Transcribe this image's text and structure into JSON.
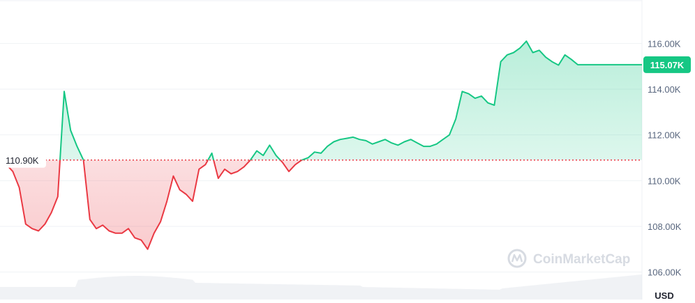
{
  "chart_data": {
    "type": "area",
    "title": "",
    "xlabel": "",
    "ylabel": "",
    "unit_label": "USD",
    "y_ticks": [
      "116.00K",
      "114.00K",
      "112.00K",
      "110.00K",
      "108.00K",
      "106.00K"
    ],
    "y_tick_values": [
      116000,
      114000,
      112000,
      110000,
      108000,
      106000
    ],
    "ylim": [
      104800,
      117900
    ],
    "baseline": {
      "value": 110900,
      "label": "110.90K"
    },
    "current_price": {
      "value": 115070,
      "label": "115.07K"
    },
    "watermark": "CoinMarketCap",
    "colors": {
      "up": "#16c784",
      "down": "#ea3943",
      "grid": "#eff2f5",
      "volume": "#e4e7ec",
      "baseline": "#ea3943"
    },
    "series": [
      {
        "x": [
          0,
          1,
          2,
          3,
          4,
          5,
          6,
          7,
          8,
          9,
          10,
          11,
          12,
          13,
          14,
          15,
          16,
          17,
          18,
          19,
          20,
          21,
          22,
          23,
          24,
          25,
          26,
          27,
          28,
          29,
          30,
          31,
          32,
          33,
          34,
          35,
          36,
          37,
          38,
          39,
          40,
          41,
          42,
          43,
          44,
          45,
          46,
          47,
          48,
          49,
          50,
          51,
          52,
          53,
          54,
          55,
          56,
          57,
          58,
          59,
          60,
          61,
          62,
          63,
          64,
          65,
          66,
          67,
          68,
          69,
          70,
          71,
          72,
          73,
          74,
          75,
          76,
          77,
          78,
          79,
          80,
          81,
          82,
          83,
          84,
          85,
          86,
          87,
          88,
          89,
          90,
          91,
          92,
          93,
          94,
          95,
          96,
          97,
          98,
          99,
          100
        ],
        "values": [
          110900,
          110700,
          110400,
          109700,
          108100,
          107900,
          107800,
          108100,
          108600,
          109300,
          113900,
          112200,
          111500,
          110900,
          108300,
          107900,
          108050,
          107800,
          107700,
          107700,
          107900,
          107500,
          107400,
          107000,
          107700,
          108200,
          109100,
          110200,
          109600,
          109400,
          109100,
          110500,
          110700,
          111200,
          110100,
          110500,
          110300,
          110400,
          110600,
          110900,
          111300,
          111100,
          111550,
          111100,
          110800,
          110400,
          110700,
          110900,
          111000,
          111250,
          111200,
          111500,
          111700,
          111800,
          111850,
          111900,
          111800,
          111750,
          111600,
          111700,
          111800,
          111650,
          111550,
          111700,
          111800,
          111650,
          111500,
          111500,
          111600,
          111800,
          112000,
          112700,
          113900,
          113800,
          113600,
          113700,
          113400,
          113300,
          115200,
          115500,
          115600,
          115800,
          116100,
          115600,
          115700,
          115400,
          115200,
          115050,
          115500,
          115300,
          115070,
          115070,
          115070,
          115070,
          115070,
          115070,
          115070,
          115070,
          115070,
          115070,
          115070
        ]
      }
    ]
  }
}
